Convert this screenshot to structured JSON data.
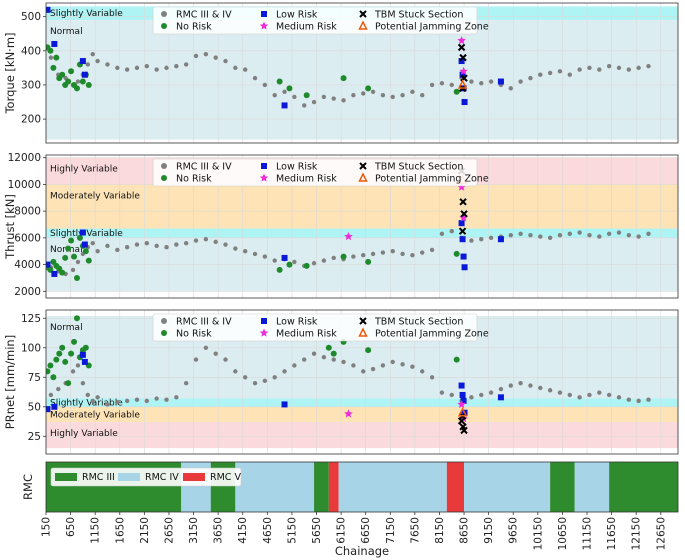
{
  "chart_data": [
    {
      "type": "scatter",
      "panel": "torque",
      "ylabel": "Torque [kN·m]",
      "xlim": [
        150,
        13000
      ],
      "ylim": [
        130,
        540
      ],
      "yticks": [
        200,
        300,
        400,
        500
      ],
      "zones": [
        {
          "label": "Slightly Variable",
          "from": 490,
          "to": 530,
          "color": "#aff4f4"
        },
        {
          "label": "Normal",
          "from": 140,
          "to": 490,
          "color": "#dcedf2"
        }
      ],
      "series": [
        {
          "name": "RMC III & IV",
          "color": "#808080",
          "marker": "circle",
          "x": [
            250,
            400,
            550,
            700,
            800,
            900,
            1000,
            1100,
            1200,
            1400,
            1600,
            1800,
            2000,
            2200,
            2400,
            2600,
            2800,
            3000,
            3200,
            3400,
            3600,
            3800,
            4000,
            4200,
            4400,
            4600,
            4800,
            5000,
            5200,
            5400,
            5600,
            5800,
            6000,
            6200,
            6400,
            6600,
            6800,
            7000,
            7200,
            7400,
            7600,
            7800,
            8000,
            8200,
            8400,
            8600,
            8800,
            9000,
            9200,
            9400,
            9600,
            9800,
            10000,
            10200,
            10400,
            10600,
            10800,
            11000,
            11200,
            11400,
            11600,
            11800,
            12000,
            12200,
            12400
          ],
          "y": [
            380,
            330,
            320,
            300,
            310,
            330,
            360,
            390,
            370,
            360,
            350,
            345,
            350,
            355,
            345,
            350,
            355,
            360,
            385,
            390,
            380,
            370,
            350,
            345,
            320,
            300,
            270,
            280,
            265,
            240,
            250,
            265,
            260,
            255,
            270,
            275,
            280,
            270,
            265,
            270,
            280,
            270,
            300,
            305,
            300,
            320,
            310,
            305,
            310,
            300,
            290,
            310,
            320,
            330,
            335,
            340,
            330,
            345,
            350,
            345,
            355,
            350,
            345,
            350,
            355
          ]
        },
        {
          "name": "No Risk",
          "color": "#1f8a2b",
          "marker": "circle",
          "x": [
            180,
            240,
            300,
            360,
            420,
            480,
            540,
            600,
            660,
            720,
            780,
            840,
            900,
            960,
            1020,
            4900,
            5100,
            5450,
            6200,
            6700,
            8500
          ],
          "y": [
            410,
            400,
            350,
            380,
            320,
            330,
            300,
            310,
            340,
            300,
            290,
            360,
            310,
            330,
            300,
            310,
            290,
            270,
            320,
            290,
            280
          ]
        },
        {
          "name": "Low Risk",
          "color": "#0a19d8",
          "marker": "square",
          "x": [
            180,
            320,
            900,
            940,
            5000,
            8600,
            8620,
            8640,
            8660,
            9400
          ],
          "y": [
            520,
            420,
            370,
            330,
            240,
            370,
            330,
            290,
            250,
            310
          ]
        },
        {
          "name": "Medium Risk",
          "color": "#ee2cd9",
          "marker": "star",
          "x": [
            8600,
            8640
          ],
          "y": [
            430,
            340
          ]
        },
        {
          "name": "TBM Stuck Section",
          "color": "#000000",
          "marker": "x",
          "x": [
            8600,
            8630,
            8650,
            8620
          ],
          "y": [
            410,
            380,
            320,
            290
          ]
        },
        {
          "name": "Potential Jamming Zone",
          "color": "#f05a0a",
          "marker": "triangle",
          "x": [
            8620
          ],
          "y": [
            300
          ]
        }
      ]
    },
    {
      "type": "scatter",
      "panel": "thrust",
      "ylabel": "Thrust [kN]",
      "xlim": [
        150,
        13000
      ],
      "ylim": [
        1500,
        12200
      ],
      "yticks": [
        2000,
        4000,
        6000,
        8000,
        10000,
        12000
      ],
      "zones": [
        {
          "label": "Highly Variable",
          "from": 10000,
          "to": 12000,
          "color": "#fadadd"
        },
        {
          "label": "Moderately Variable",
          "from": 6700,
          "to": 10000,
          "color": "#fde3b6"
        },
        {
          "label": "Slightly Variable",
          "from": 6000,
          "to": 6700,
          "color": "#aff4f4"
        },
        {
          "label": "Normal",
          "from": 2000,
          "to": 6000,
          "color": "#dcedf2"
        }
      ],
      "series": [
        {
          "name": "RMC III & IV",
          "color": "#808080",
          "marker": "circle",
          "x": [
            250,
            400,
            550,
            700,
            800,
            900,
            1000,
            1100,
            1200,
            1400,
            1600,
            1800,
            2000,
            2200,
            2400,
            2600,
            2800,
            3000,
            3200,
            3400,
            3600,
            3800,
            4000,
            4200,
            4400,
            4600,
            4800,
            5000,
            5200,
            5400,
            5600,
            5800,
            6000,
            6200,
            6400,
            6600,
            6800,
            7000,
            7200,
            7400,
            7600,
            7800,
            8000,
            8200,
            8400,
            8600,
            8800,
            9000,
            9200,
            9400,
            9600,
            9800,
            10000,
            10200,
            10400,
            10600,
            10800,
            11000,
            11200,
            11400,
            11600,
            11800,
            12000,
            12200,
            12400
          ],
          "y": [
            3800,
            3500,
            3300,
            3600,
            4200,
            4800,
            5300,
            5600,
            5000,
            5400,
            5100,
            5300,
            5500,
            5600,
            5400,
            5300,
            5500,
            5600,
            5800,
            5900,
            5700,
            5500,
            5200,
            5000,
            4800,
            4600,
            4300,
            4400,
            4200,
            3900,
            4100,
            4300,
            4500,
            4400,
            4600,
            4700,
            4800,
            4900,
            5000,
            4800,
            4700,
            4900,
            5100,
            6300,
            6500,
            6000,
            5800,
            5900,
            6000,
            6100,
            6200,
            6300,
            6200,
            6100,
            6000,
            6200,
            6300,
            6400,
            6200,
            6100,
            6300,
            6400,
            6200,
            6100,
            6300
          ]
        },
        {
          "name": "No Risk",
          "color": "#1f8a2b",
          "marker": "circle",
          "x": [
            180,
            240,
            300,
            360,
            420,
            480,
            540,
            600,
            660,
            720,
            780,
            840,
            900,
            960,
            1020,
            4900,
            5100,
            5450,
            6200,
            6700,
            8500
          ],
          "y": [
            3800,
            3600,
            4200,
            3900,
            3700,
            3400,
            4500,
            5200,
            5800,
            4600,
            3000,
            6000,
            5400,
            5000,
            4300,
            3600,
            4000,
            3900,
            4600,
            4200,
            4800
          ]
        },
        {
          "name": "Low Risk",
          "color": "#0a19d8",
          "marker": "square",
          "x": [
            180,
            320,
            900,
            940,
            5000,
            8600,
            8620,
            8640,
            8660,
            9400
          ],
          "y": [
            4000,
            3300,
            6400,
            5500,
            4500,
            7100,
            5900,
            4600,
            3800,
            5900
          ]
        },
        {
          "name": "Medium Risk",
          "color": "#ee2cd9",
          "marker": "star",
          "x": [
            8600,
            8640,
            6300
          ],
          "y": [
            9800,
            7500,
            6100
          ]
        },
        {
          "name": "TBM Stuck Section",
          "color": "#000000",
          "marker": "x",
          "x": [
            8600,
            8630,
            8650,
            8620
          ],
          "y": [
            11000,
            8700,
            7800,
            6500
          ]
        },
        {
          "name": "Potential Jamming Zone",
          "color": "#f05a0a",
          "marker": "triangle",
          "x": [
            8620
          ],
          "y": [
            10300
          ]
        }
      ]
    },
    {
      "type": "scatter",
      "panel": "prnet",
      "ylabel": "PRnet [mm/min]",
      "xlim": [
        150,
        13000
      ],
      "ylim": [
        10,
        132
      ],
      "yticks": [
        25,
        50,
        75,
        100,
        125
      ],
      "zones": [
        {
          "label": "Normal",
          "from": 57,
          "to": 127,
          "color": "#dcedf2"
        },
        {
          "label": "Slightly Variable",
          "from": 50,
          "to": 57,
          "color": "#aff4f4"
        },
        {
          "label": "Moderately Variable",
          "from": 37,
          "to": 50,
          "color": "#fde3b6"
        },
        {
          "label": "Highly Variable",
          "from": 15,
          "to": 37,
          "color": "#fadadd"
        }
      ],
      "series": [
        {
          "name": "RMC III & IV",
          "color": "#808080",
          "marker": "circle",
          "x": [
            250,
            400,
            550,
            700,
            800,
            900,
            1000,
            1100,
            1200,
            1400,
            1600,
            1800,
            2000,
            2200,
            2400,
            2600,
            2800,
            3000,
            3200,
            3400,
            3600,
            3800,
            4000,
            4200,
            4400,
            4600,
            4800,
            5000,
            5200,
            5400,
            5600,
            5800,
            6000,
            6200,
            6400,
            6600,
            6800,
            7000,
            7200,
            7400,
            7600,
            7800,
            8000,
            8200,
            8400,
            8600,
            8800,
            9000,
            9200,
            9400,
            9600,
            9800,
            10000,
            10200,
            10400,
            10600,
            10800,
            11000,
            11200,
            11400,
            11600,
            11800,
            12000,
            12200,
            12400
          ],
          "y": [
            60,
            65,
            70,
            80,
            85,
            70,
            60,
            55,
            58,
            52,
            54,
            55,
            56,
            55,
            57,
            56,
            58,
            70,
            90,
            100,
            95,
            90,
            80,
            75,
            70,
            72,
            75,
            80,
            85,
            90,
            95,
            92,
            90,
            88,
            85,
            80,
            82,
            85,
            88,
            86,
            84,
            80,
            75,
            62,
            60,
            55,
            58,
            60,
            62,
            65,
            68,
            70,
            68,
            66,
            64,
            62,
            60,
            58,
            60,
            62,
            60,
            58,
            56,
            55,
            56
          ]
        },
        {
          "name": "No Risk",
          "color": "#1f8a2b",
          "marker": "circle",
          "x": [
            180,
            240,
            300,
            360,
            420,
            480,
            540,
            600,
            660,
            720,
            780,
            840,
            900,
            960,
            1020,
            5900,
            6000,
            6200,
            6700,
            8500
          ],
          "y": [
            80,
            85,
            75,
            90,
            95,
            100,
            88,
            70,
            95,
            105,
            125,
            92,
            98,
            100,
            85,
            100,
            95,
            105,
            98,
            90
          ]
        },
        {
          "name": "Low Risk",
          "color": "#0a19d8",
          "marker": "square",
          "x": [
            180,
            320,
            900,
            940,
            5000,
            8600,
            8620,
            8640,
            8660,
            9400
          ],
          "y": [
            48,
            50,
            94,
            88,
            52,
            68,
            60,
            55,
            45,
            58
          ]
        },
        {
          "name": "Medium Risk",
          "color": "#ee2cd9",
          "marker": "star",
          "x": [
            8600,
            8640,
            6300
          ],
          "y": [
            52,
            40,
            44
          ]
        },
        {
          "name": "TBM Stuck Section",
          "color": "#000000",
          "marker": "x",
          "x": [
            8600,
            8630,
            8650,
            8620
          ],
          "y": [
            38,
            33,
            30,
            42
          ]
        },
        {
          "name": "Potential Jamming Zone",
          "color": "#f05a0a",
          "marker": "triangle",
          "x": [
            8620
          ],
          "y": [
            45
          ]
        }
      ]
    },
    {
      "type": "heatmap",
      "panel": "rmc",
      "ylabel": "RMC",
      "xlabel": "Chainage",
      "xlim": [
        150,
        13000
      ],
      "xticks": [
        150,
        650,
        1150,
        1650,
        2150,
        2650,
        3150,
        3650,
        4150,
        4650,
        5150,
        5650,
        6150,
        6650,
        7150,
        7650,
        8150,
        8650,
        9150,
        9650,
        10150,
        10650,
        11150,
        11650,
        12150,
        12650
      ],
      "legend": [
        {
          "name": "RMC III",
          "color": "#2e8b2e"
        },
        {
          "name": "RMC IV",
          "color": "#a8d4e8"
        },
        {
          "name": "RMC V",
          "color": "#e83a3a"
        }
      ],
      "segments": [
        {
          "from": 150,
          "to": 2900,
          "class": "RMC III"
        },
        {
          "from": 2900,
          "to": 3500,
          "class": "RMC IV"
        },
        {
          "from": 3500,
          "to": 4000,
          "class": "RMC III"
        },
        {
          "from": 4000,
          "to": 5600,
          "class": "RMC IV"
        },
        {
          "from": 5600,
          "to": 5900,
          "class": "RMC III"
        },
        {
          "from": 5900,
          "to": 6100,
          "class": "RMC V"
        },
        {
          "from": 6100,
          "to": 8300,
          "class": "RMC IV"
        },
        {
          "from": 8300,
          "to": 8650,
          "class": "RMC V"
        },
        {
          "from": 8650,
          "to": 10400,
          "class": "RMC IV"
        },
        {
          "from": 10400,
          "to": 10900,
          "class": "RMC III"
        },
        {
          "from": 10900,
          "to": 11600,
          "class": "RMC IV"
        },
        {
          "from": 11600,
          "to": 13000,
          "class": "RMC III"
        }
      ]
    }
  ]
}
